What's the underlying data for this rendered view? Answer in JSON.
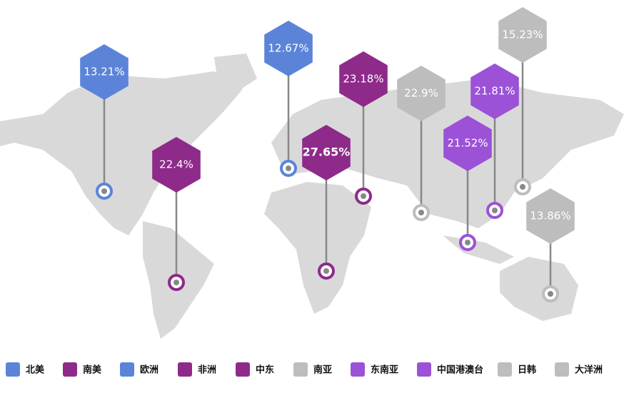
{
  "chart_data": {
    "type": "hexmap",
    "categories": [
      "北美",
      "南美",
      "欧洲",
      "非洲",
      "中东",
      "南亚",
      "东南亚",
      "中国港澳台",
      "日韩",
      "大洋洲"
    ],
    "values": [
      13.21,
      22.4,
      12.67,
      27.65,
      23.18,
      22.9,
      21.52,
      21.81,
      15.23,
      13.86
    ],
    "value_labels": [
      "13.21%",
      "22.4%",
      "12.67%",
      "27.65%",
      "23.18%",
      "22.9%",
      "21.52%",
      "21.81%",
      "15.23%",
      "13.86%"
    ],
    "colors": [
      "#5b84d9",
      "#8e2a8a",
      "#5b84d9",
      "#8e2a8a",
      "#8e2a8a",
      "#bdbdbd",
      "#9b52d6",
      "#9b52d6",
      "#bdbdbd",
      "#bdbdbd"
    ],
    "emphasis_index": 3
  }
}
